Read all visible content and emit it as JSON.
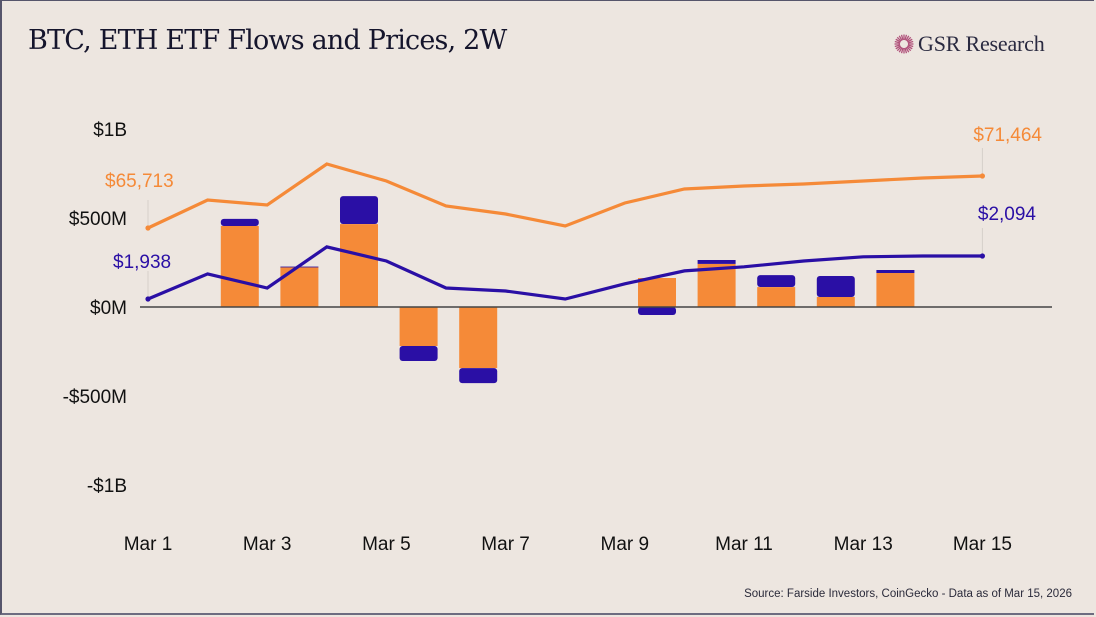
{
  "header": {
    "title": "BTC, ETH ETF Flows and Prices, 2W",
    "brand": "GSR Research",
    "brand_icon": "sunburst-logo-icon"
  },
  "footer": {
    "source": "Source: Farside Investors, CoinGecko - Data as of Mar 15, 2026"
  },
  "colors": {
    "btc": "#f58a38",
    "eth": "#2a0fa5",
    "background": "#ede6e0",
    "text": "#111111",
    "brand_icon": "#b0517a"
  },
  "chart_data": {
    "type": "bar",
    "title": "BTC, ETH ETF Flows and Prices, 2W",
    "xlabel": "",
    "ylabel": "",
    "ylim": [
      -1000,
      1000
    ],
    "y_unit": "USD millions",
    "y_ticks": [
      {
        "value": 1000,
        "label": "$1B"
      },
      {
        "value": 500,
        "label": "$500M"
      },
      {
        "value": 0,
        "label": "$0M"
      },
      {
        "value": -500,
        "label": "-$500M"
      },
      {
        "value": -1000,
        "label": "-$1B"
      }
    ],
    "x_ticks": [
      "Mar 1",
      "Mar 3",
      "Mar 5",
      "Mar 7",
      "Mar 9",
      "Mar 11",
      "Mar 13",
      "Mar 15"
    ],
    "dates": [
      "Mar 1",
      "Mar 2",
      "Mar 3",
      "Mar 4",
      "Mar 5",
      "Mar 6",
      "Mar 7",
      "Mar 8",
      "Mar 9",
      "Mar 10",
      "Mar 11",
      "Mar 12",
      "Mar 13",
      "Mar 14",
      "Mar 15"
    ],
    "grid": false,
    "legend": "none",
    "flows": {
      "type": "stacked-bar",
      "dates": [
        "Mar 2",
        "Mar 3",
        "Mar 4",
        "Mar 5",
        "Mar 6",
        "Mar 9",
        "Mar 10",
        "Mar 11",
        "Mar 12",
        "Mar 13"
      ],
      "series": [
        {
          "name": "BTC ETF Flows",
          "color": "#f58a38",
          "values": [
            455,
            225,
            466,
            -219,
            -343,
            163,
            242,
            112,
            56,
            191
          ]
        },
        {
          "name": "ETH ETF Flows",
          "color": "#2a0fa5",
          "values": [
            40,
            2,
            157,
            -84,
            -84,
            -45,
            22,
            67,
            118,
            17
          ]
        }
      ]
    },
    "prices": {
      "type": "line",
      "series": [
        {
          "name": "BTC Price",
          "color": "#f58a38",
          "values": [
            65713,
            68810,
            68257,
            72792,
            70912,
            68147,
            67262,
            65935,
            68479,
            70027,
            70359,
            70580,
            70912,
            71243,
            71464
          ],
          "start_label": "$65,713",
          "end_label": "$71,464"
        },
        {
          "name": "ETH Price",
          "color": "#2a0fa5",
          "values": [
            1938,
            2029,
            1978,
            2127,
            2076,
            1978,
            1967,
            1938,
            1993,
            2040,
            2055,
            2076,
            2091,
            2094,
            2094
          ],
          "start_label": "$1,938",
          "end_label": "$2,094"
        }
      ]
    }
  }
}
